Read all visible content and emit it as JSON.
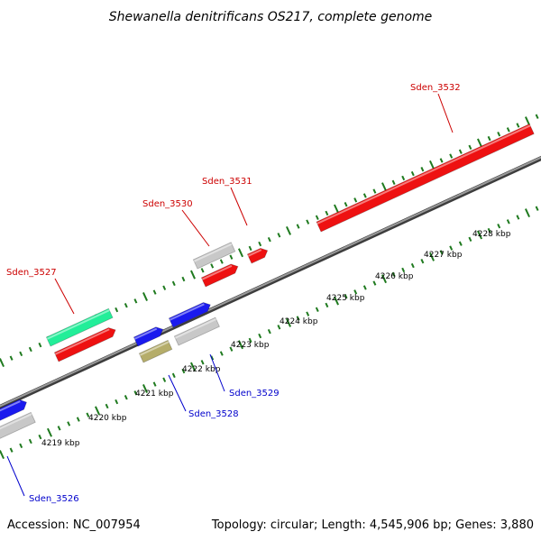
{
  "title": "Shewanella denitrificans OS217, complete genome",
  "footer": {
    "accession": "Accession: NC_007954",
    "summary": "Topology: circular; Length: 4,545,906 bp; Genes: 3,880"
  },
  "colors": {
    "backbone": "#7a7a7a",
    "tick": "#1f7a1f",
    "red_gene": "#ee1111",
    "blue_gene": "#1a1aee",
    "grey_gene": "#c8c8c8",
    "teal_gene": "#22ee99",
    "olive_gene": "#b5ad6a",
    "label_red": "#cc0000",
    "label_blue": "#0000cc"
  },
  "tick_labels": [
    "4219 kbp",
    "4220 kbp",
    "4221 kbp",
    "4222 kbp",
    "4223 kbp",
    "4224 kbp",
    "4225 kbp",
    "4226 kbp",
    "4227 kbp",
    "4228 kbp"
  ],
  "gene_labels": [
    "Sden_3532",
    "Sden_3531",
    "Sden_3530",
    "Sden_3527",
    "Sden_3529",
    "Sden_3528",
    "Sden_3526"
  ]
}
